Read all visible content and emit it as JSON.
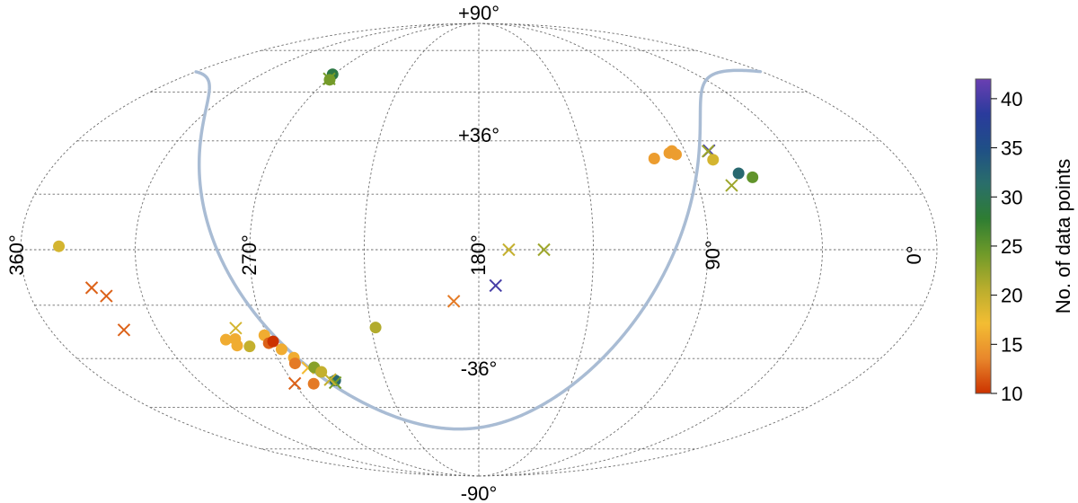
{
  "chart_data": {
    "type": "scatter",
    "projection": "mollweide",
    "x_direction": "decreasing-rightward",
    "grid": true,
    "axis_labels": {
      "lon_360": "360°",
      "lon_270": "270°",
      "lon_180": "180°",
      "lon_90": "90°",
      "lon_0": "0°",
      "lat_p90": "+90°",
      "lat_p36": "+36°",
      "lat_m36": "-36°",
      "lat_m90": "-90°"
    },
    "colorbar": {
      "label": "No. of data points",
      "range": [
        10,
        42
      ],
      "ticks": [
        "10",
        "15",
        "20",
        "25",
        "30",
        "35",
        "40"
      ],
      "tick_values": [
        10,
        15,
        20,
        25,
        30,
        35,
        40
      ],
      "colors": [
        "#cc3300",
        "#e8872c",
        "#f3bd33",
        "#b9ad2d",
        "#6f9a29",
        "#2e7d32",
        "#2a6e6a",
        "#1f4f86",
        "#2a3b9c",
        "#6a3fb2"
      ]
    },
    "galactic_plane_color": "#a9bcd4",
    "points": [
      {
        "lon": 270.9,
        "lat": 61.2,
        "n": 29,
        "marker": "circle"
      },
      {
        "lon": 269.6,
        "lat": 59.3,
        "n": 24,
        "marker": "x"
      },
      {
        "lon": 268.7,
        "lat": 58.9,
        "n": 24,
        "marker": "circle"
      },
      {
        "lon": 95.7,
        "lat": 32.5,
        "n": 15,
        "marker": "circle"
      },
      {
        "lon": 97.2,
        "lat": 31.8,
        "n": 15,
        "marker": "circle"
      },
      {
        "lon": 94.6,
        "lat": 31.3,
        "n": 15,
        "marker": "circle"
      },
      {
        "lon": 104.7,
        "lat": 29.9,
        "n": 15,
        "marker": "circle"
      },
      {
        "lon": 79.4,
        "lat": 32.6,
        "n": 40,
        "marker": "x"
      },
      {
        "lon": 80.0,
        "lat": 32.4,
        "n": 22,
        "marker": "x"
      },
      {
        "lon": 79.7,
        "lat": 29.5,
        "n": 19,
        "marker": "circle"
      },
      {
        "lon": 71.6,
        "lat": 24.9,
        "n": 32,
        "marker": "circle"
      },
      {
        "lon": 66.5,
        "lat": 23.6,
        "n": 25,
        "marker": "circle"
      },
      {
        "lon": 76.4,
        "lat": 20.9,
        "n": 22,
        "marker": "x"
      },
      {
        "lon": 345.0,
        "lat": 1.1,
        "n": 19,
        "marker": "circle"
      },
      {
        "lon": 334.3,
        "lat": -12.3,
        "n": 12,
        "marker": "x"
      },
      {
        "lon": 329.5,
        "lat": -15.0,
        "n": 12,
        "marker": "x"
      },
      {
        "lon": 329.1,
        "lat": -26.2,
        "n": 12,
        "marker": "x"
      },
      {
        "lon": 168.2,
        "lat": 0.0,
        "n": 20,
        "marker": "x"
      },
      {
        "lon": 154.4,
        "lat": 0.0,
        "n": 22,
        "marker": "x"
      },
      {
        "lon": 173.3,
        "lat": -11.6,
        "n": 40,
        "marker": "x"
      },
      {
        "lon": 190.1,
        "lat": -16.7,
        "n": 13,
        "marker": "x"
      },
      {
        "lon": 223.2,
        "lat": -25.4,
        "n": 21,
        "marker": "circle"
      },
      {
        "lon": 281.8,
        "lat": -25.6,
        "n": 19,
        "marker": "x"
      },
      {
        "lon": 288.3,
        "lat": -29.5,
        "n": 16,
        "marker": "circle"
      },
      {
        "lon": 284.2,
        "lat": -29.3,
        "n": 16,
        "marker": "circle"
      },
      {
        "lon": 284.8,
        "lat": -31.5,
        "n": 16,
        "marker": "circle"
      },
      {
        "lon": 279.6,
        "lat": -31.8,
        "n": 20,
        "marker": "circle"
      },
      {
        "lon": 271.0,
        "lat": -28.0,
        "n": 16,
        "marker": "circle"
      },
      {
        "lon": 270.6,
        "lat": -30.7,
        "n": 12,
        "marker": "circle"
      },
      {
        "lon": 268.4,
        "lat": -30.1,
        "n": 10,
        "marker": "circle"
      },
      {
        "lon": 266.3,
        "lat": -32.8,
        "n": 16,
        "marker": "circle"
      },
      {
        "lon": 262.7,
        "lat": -35.7,
        "n": 16,
        "marker": "circle"
      },
      {
        "lon": 263.5,
        "lat": -37.7,
        "n": 13,
        "marker": "circle"
      },
      {
        "lon": 258.7,
        "lat": -39.3,
        "n": 17,
        "marker": "x"
      },
      {
        "lon": 255.7,
        "lat": -39.1,
        "n": 23,
        "marker": "circle"
      },
      {
        "lon": 253.5,
        "lat": -40.7,
        "n": 20,
        "marker": "circle"
      },
      {
        "lon": 249.1,
        "lat": -43.8,
        "n": 32,
        "marker": "circle"
      },
      {
        "lon": 249.7,
        "lat": -44.6,
        "n": 24,
        "marker": "x"
      },
      {
        "lon": 251.3,
        "lat": -43.5,
        "n": 20,
        "marker": "x"
      },
      {
        "lon": 269.6,
        "lat": -44.9,
        "n": 12,
        "marker": "x"
      },
      {
        "lon": 260.5,
        "lat": -45.0,
        "n": 13,
        "marker": "circle"
      }
    ]
  }
}
